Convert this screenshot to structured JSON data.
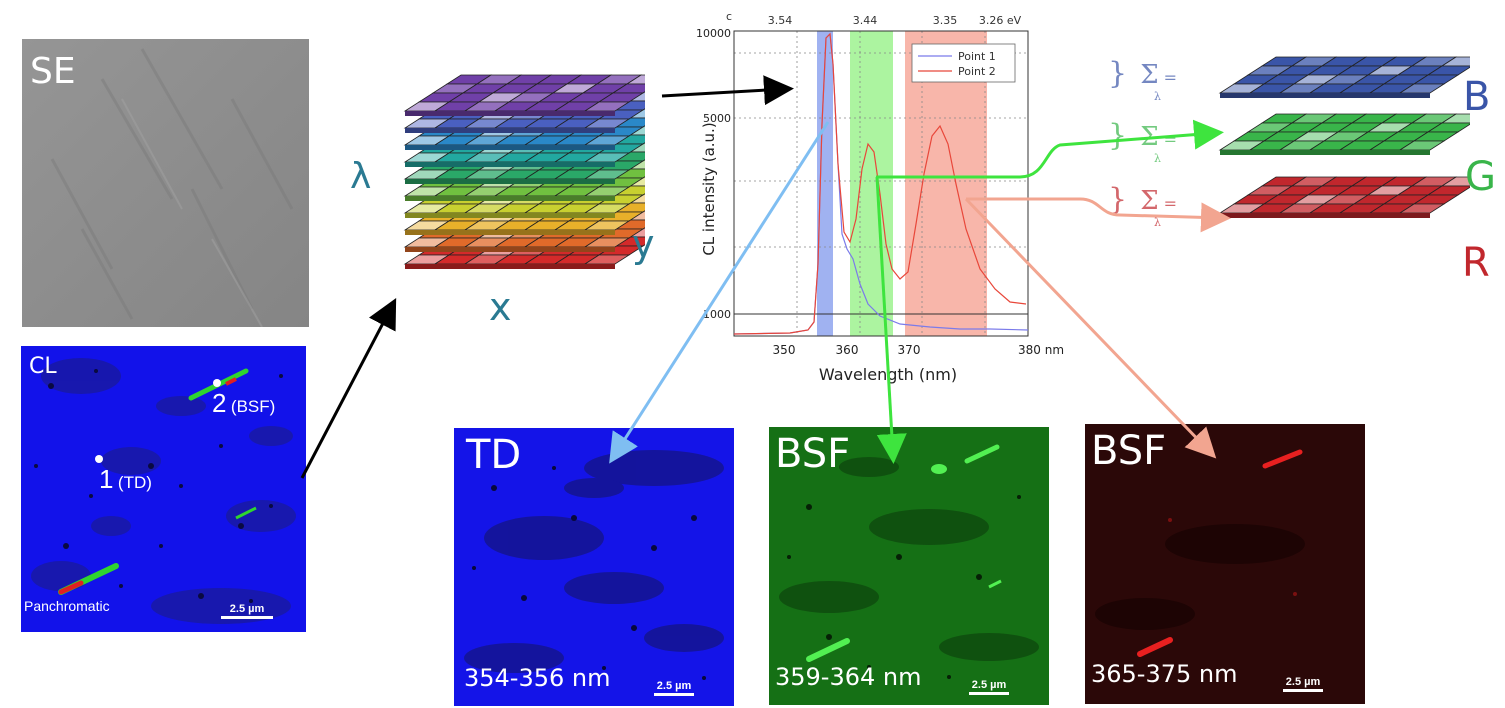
{
  "se_panel": {
    "label": "SE"
  },
  "cl_panel": {
    "label": "CL",
    "point1_number": "1",
    "point1_tag": "(TD)",
    "point2_number": "2",
    "point2_tag": "(BSF)",
    "mode": "Panchromatic",
    "scale": "2.5 µm"
  },
  "cube": {
    "lambda": "λ",
    "x": "x",
    "y": "y"
  },
  "spectrum": {
    "top_axis": [
      "c",
      "3.54",
      "3.44",
      "3.35",
      "3.26 eV"
    ],
    "y_ticks": [
      "10000",
      "5000",
      "1000"
    ],
    "x_ticks": [
      "350",
      "360",
      "370",
      "380 nm"
    ],
    "xlabel": "Wavelength (nm)",
    "ylabel": "CL intensity (a.u.)",
    "legend": [
      "Point 1",
      "Point 2"
    ],
    "colors": {
      "point1": "#7b7bea",
      "point2": "#e8473a",
      "blue_band": "#8fa4ee",
      "green_band": "#9df28f",
      "red_band": "#f7a99b"
    }
  },
  "rgb": {
    "sum": "Σ",
    "sub": "λ",
    "eq": "=",
    "labels": [
      "B",
      "G",
      "R"
    ],
    "colors": {
      "B": "#3a55a8",
      "G": "#39b54a",
      "R": "#c1272d"
    }
  },
  "maps": [
    {
      "title": "TD",
      "range": "354-356 nm",
      "scale": "2.5 µm"
    },
    {
      "title": "BSF",
      "range": "359-364 nm",
      "scale": "2.5 µm"
    },
    {
      "title": "BSF",
      "range": "365-375 nm",
      "scale": "2.5 µm"
    }
  ]
}
